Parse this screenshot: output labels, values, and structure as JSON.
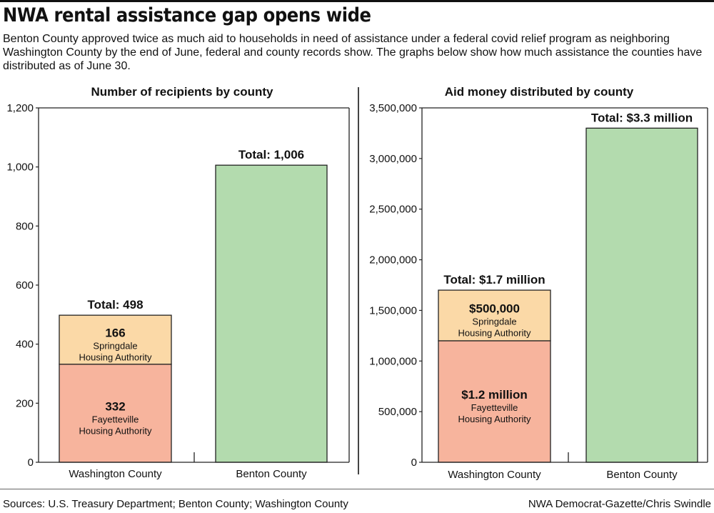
{
  "page": {
    "headline": "NWA rental assistance gap opens wide",
    "intro": "Benton County approved twice as much aid to households in need of assistance under a federal covid relief program as neighboring Washington County by the end of June, federal and county records show. The graphs below show how much assistance the counties have distributed as of June 30.",
    "sources": "Sources: U.S. Treasury Department; Benton County; Washington County",
    "credit": "NWA Democrat-Gazette/Chris Swindle"
  },
  "colors": {
    "fayetteville": "#f7b49d",
    "springdale": "#fbd9a7",
    "benton": "#b3dbae",
    "outline": "#222222"
  },
  "chart_data": [
    {
      "type": "bar",
      "title": "Number of recipients by county",
      "categories": [
        "Washington County",
        "Benton County"
      ],
      "ylim": [
        0,
        1200
      ],
      "yticks": [
        0,
        200,
        400,
        600,
        800,
        1000,
        1200
      ],
      "ytick_labels": [
        "0",
        "200",
        "400",
        "600",
        "800",
        "1,000",
        "1,200"
      ],
      "stacked": true,
      "bars": [
        {
          "category": "Washington County",
          "total": 498,
          "total_label": "Total: 498",
          "segments": [
            {
              "value": 332,
              "value_label": "332",
              "label_line1": "Fayetteville",
              "label_line2": "Housing Authority",
              "color_key": "fayetteville"
            },
            {
              "value": 166,
              "value_label": "166",
              "label_line1": "Springdale",
              "label_line2": "Housing Authority",
              "color_key": "springdale"
            }
          ]
        },
        {
          "category": "Benton County",
          "total": 1006,
          "total_label": "Total: 1,006",
          "segments": [
            {
              "value": 1006,
              "value_label": "",
              "label_line1": "",
              "label_line2": "",
              "color_key": "benton"
            }
          ]
        }
      ]
    },
    {
      "type": "bar",
      "title": "Aid money distributed by county",
      "categories": [
        "Washington County",
        "Benton County"
      ],
      "ylim": [
        0,
        3500000
      ],
      "yticks": [
        0,
        500000,
        1000000,
        1500000,
        2000000,
        2500000,
        3000000,
        3500000
      ],
      "ytick_labels": [
        "0",
        "500,000",
        "1,000,000",
        "1,500,000",
        "2,000,000",
        "2,500,000",
        "3,000,000",
        "3,500,000"
      ],
      "stacked": true,
      "bars": [
        {
          "category": "Washington County",
          "total": 1700000,
          "total_label": "Total: $1.7 million",
          "segments": [
            {
              "value": 1200000,
              "value_label": "$1.2 million",
              "label_line1": "Fayetteville",
              "label_line2": "Housing Authority",
              "color_key": "fayetteville"
            },
            {
              "value": 500000,
              "value_label": "$500,000",
              "label_line1": "Springdale",
              "label_line2": "Housing Authority",
              "color_key": "springdale"
            }
          ]
        },
        {
          "category": "Benton County",
          "total": 3300000,
          "total_label": "Total: $3.3 million",
          "segments": [
            {
              "value": 3300000,
              "value_label": "",
              "label_line1": "",
              "label_line2": "",
              "color_key": "benton"
            }
          ]
        }
      ]
    }
  ]
}
